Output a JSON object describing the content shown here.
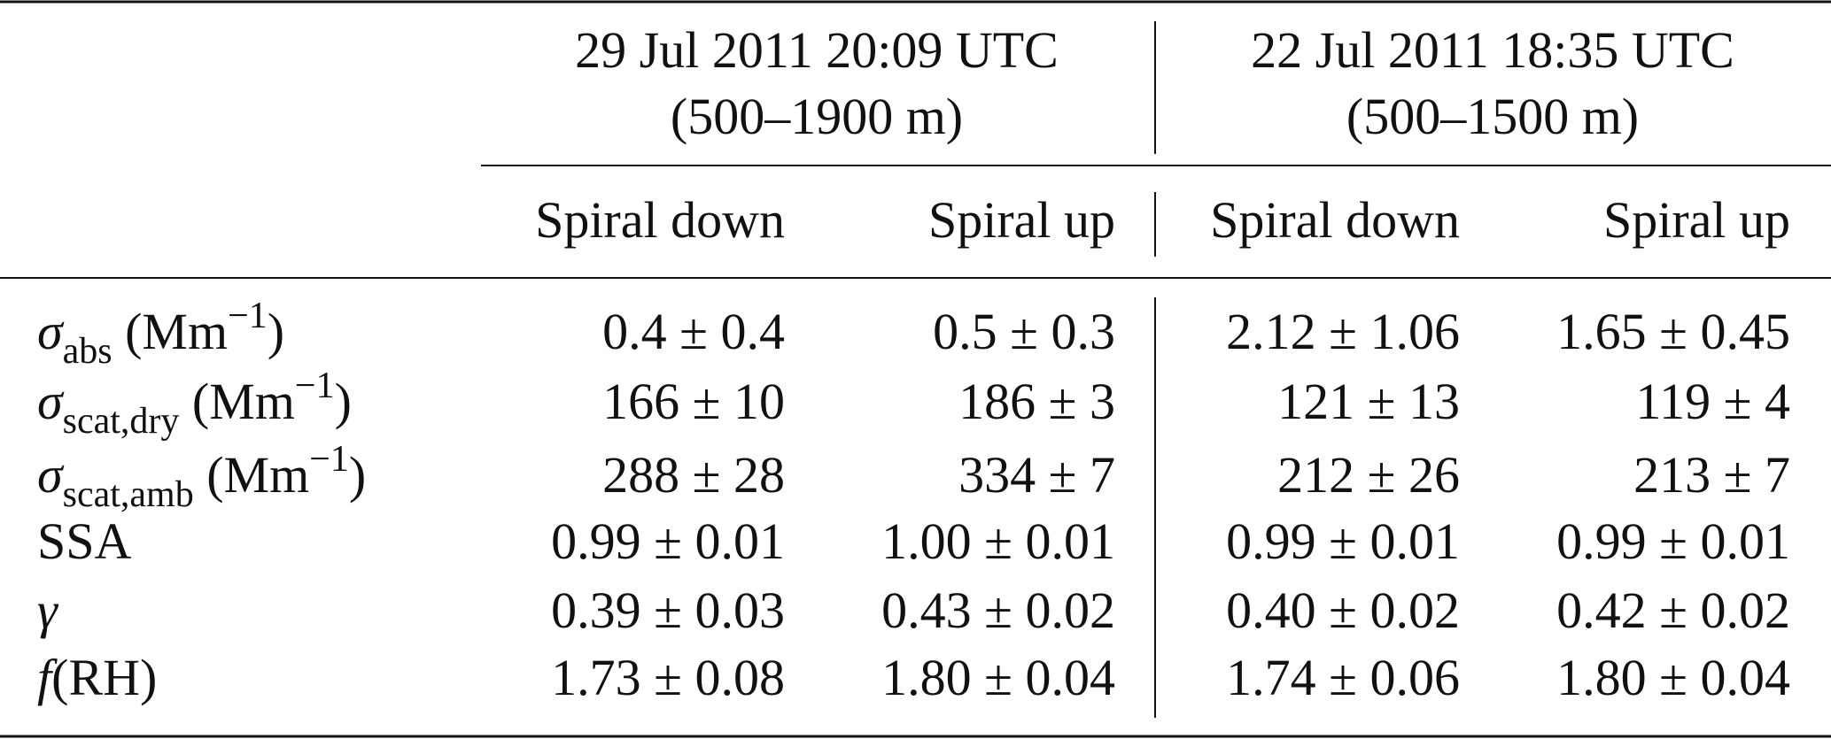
{
  "table": {
    "groups": [
      {
        "title": "29 Jul 2011 20:09 UTC",
        "range": "(500–1900 m)"
      },
      {
        "title": "22 Jul 2011 18:35 UTC",
        "range": "(500–1500 m)"
      }
    ],
    "columns": [
      "Spiral down",
      "Spiral up",
      "Spiral down",
      "Spiral up"
    ],
    "rows": [
      {
        "label": [
          {
            "text": "σ",
            "italic": true
          },
          {
            "text": "abs",
            "sub": true
          },
          {
            "text": " (Mm"
          },
          {
            "text": "−1",
            "sup": true
          },
          {
            "text": ")"
          }
        ],
        "cells": [
          "0.4 ± 0.4",
          "0.5 ± 0.3",
          "2.12 ± 1.06",
          "1.65 ± 0.45"
        ]
      },
      {
        "label": [
          {
            "text": "σ",
            "italic": true
          },
          {
            "text": "scat,dry",
            "sub": true
          },
          {
            "text": " (Mm"
          },
          {
            "text": "−1",
            "sup": true
          },
          {
            "text": ")"
          }
        ],
        "cells": [
          "166 ± 10",
          "186 ± 3",
          "121 ± 13",
          "119 ± 4"
        ]
      },
      {
        "label": [
          {
            "text": "σ",
            "italic": true
          },
          {
            "text": "scat,amb",
            "sub": true
          },
          {
            "text": " (Mm"
          },
          {
            "text": "−1",
            "sup": true
          },
          {
            "text": ")"
          }
        ],
        "cells": [
          "288 ± 28",
          "334 ± 7",
          "212 ± 26",
          "213 ± 7"
        ]
      },
      {
        "label": [
          {
            "text": "SSA"
          }
        ],
        "cells": [
          "0.99 ± 0.01",
          "1.00 ± 0.01",
          "0.99 ± 0.01",
          "0.99 ± 0.01"
        ]
      },
      {
        "label": [
          {
            "text": "γ",
            "italic": true
          }
        ],
        "cells": [
          "0.39 ± 0.03",
          "0.43 ± 0.02",
          "0.40 ± 0.02",
          "0.42 ± 0.02"
        ]
      },
      {
        "label": [
          {
            "text": "f",
            "italic": true
          },
          {
            "text": "(RH)"
          }
        ],
        "cells": [
          "1.73 ± 0.08",
          "1.80 ± 0.04",
          "1.74 ± 0.06",
          "1.80 ± 0.04"
        ]
      }
    ]
  }
}
